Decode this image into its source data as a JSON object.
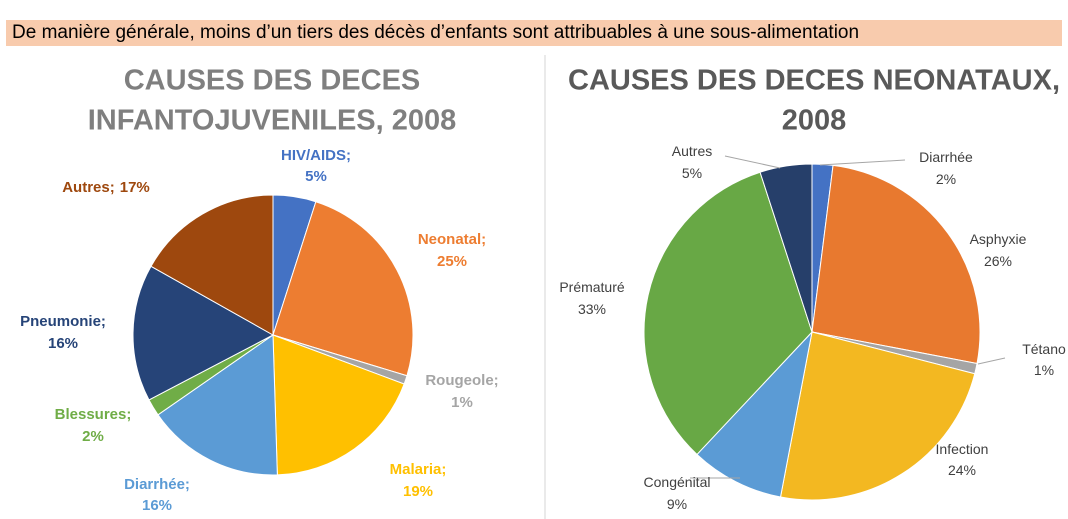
{
  "header": {
    "title": "De manière générale, moins d’un tiers des décès d’enfants sont attribuables à une sous-alimentation"
  },
  "chart_data": [
    {
      "type": "pie",
      "title": [
        "CAUSES DES  DECES",
        "INFANTOJUVENILES, 2008"
      ],
      "categories": [
        "HIV/AIDS;",
        "Neonatal;",
        "Rougeole;",
        "Malaria;",
        "Diarrhée;",
        "Blessures;",
        "Pneumonie;",
        "Autres;"
      ],
      "values": [
        5,
        25,
        1,
        19,
        16,
        2,
        16,
        17
      ],
      "value_labels": [
        "5%",
        "25%",
        "1%",
        "19%",
        "16%",
        "2%",
        "16%",
        "17%"
      ],
      "colors": [
        "#4472c4",
        "#ed7d31",
        "#a5a5a5",
        "#ffc000",
        "#5b9bd5",
        "#70ad47",
        "#264478",
        "#9e480e"
      ]
    },
    {
      "type": "pie",
      "title": [
        "CAUSES DES DECES NEONATAUX,",
        "2008"
      ],
      "categories": [
        "Diarrhée",
        "Asphyxie",
        "Tétano",
        "Infection",
        "Congénital",
        "Prématuré",
        "Autres"
      ],
      "values": [
        2,
        26,
        1,
        24,
        9,
        33,
        5
      ],
      "value_labels": [
        "2%",
        "26%",
        "1%",
        "24%",
        "9%",
        "33%",
        "5%"
      ],
      "colors": [
        "#4472c4",
        "#e8792f",
        "#a5a5a5",
        "#f3b821",
        "#5b9bd5",
        "#68a845",
        "#263f6a"
      ]
    }
  ]
}
